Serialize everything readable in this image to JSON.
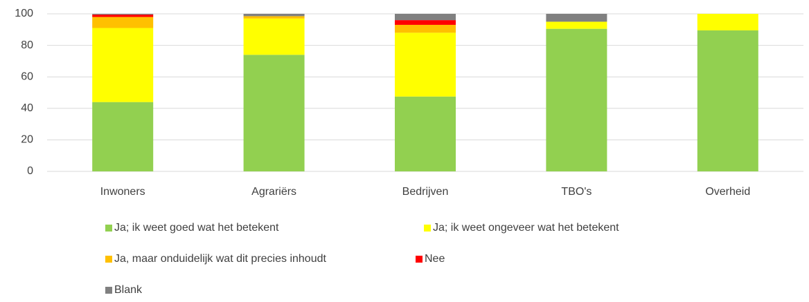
{
  "chart_data": {
    "type": "stacked_bar",
    "categories": [
      "Inwoners",
      "Agrariërs",
      "Bedrijven",
      "TBO's",
      "Overheid"
    ],
    "series": [
      {
        "name": "Ja; ik weet goed wat het betekent",
        "color": "#92d050",
        "values": [
          44,
          74,
          47.5,
          90.5,
          89.5
        ]
      },
      {
        "name": "Ja; ik weet ongeveer wat het betekent",
        "color": "#ffff00",
        "values": [
          47,
          23,
          40.5,
          4.5,
          10.5
        ]
      },
      {
        "name": "Ja, maar onduidelijk wat dit precies inhoudt",
        "color": "#ffc000",
        "values": [
          7,
          1.5,
          5,
          0,
          0
        ]
      },
      {
        "name": "Nee",
        "color": "#ff0000",
        "values": [
          1.5,
          0,
          3,
          0,
          0
        ]
      },
      {
        "name": "Blank",
        "color": "#808080",
        "values": [
          0.5,
          1.5,
          4,
          5,
          0
        ]
      }
    ],
    "ylim": [
      0,
      100
    ],
    "yticks": [
      0,
      20,
      40,
      60,
      80,
      100
    ],
    "grid": true
  }
}
